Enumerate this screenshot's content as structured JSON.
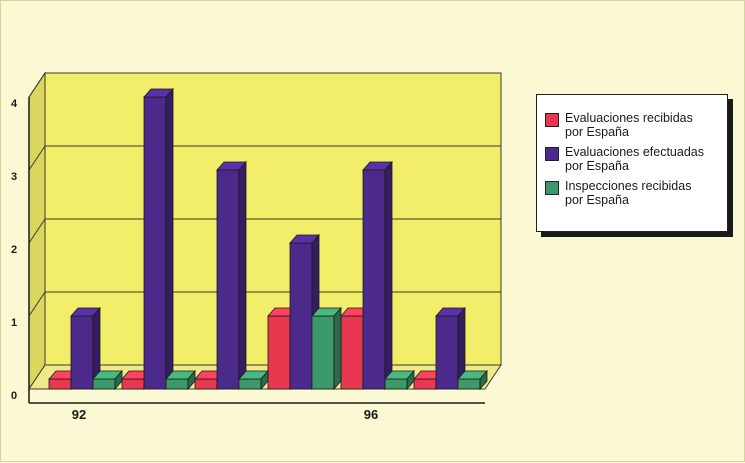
{
  "chart_data": {
    "type": "bar",
    "style": "3d-clustered",
    "categories": [
      "92",
      "",
      "",
      "",
      "96",
      ""
    ],
    "series": [
      {
        "name": "Evaluaciones recibidas por España",
        "legend_lines": [
          "Evaluaciones recibidas",
          "por España"
        ],
        "color": "#e8384f",
        "values": [
          0,
          0,
          0,
          1,
          1,
          0
        ]
      },
      {
        "name": "Evaluaciones efectuadas por España",
        "legend_lines": [
          "Evaluaciones efectuadas",
          "por España"
        ],
        "color": "#4b2a8c",
        "values": [
          1,
          4,
          3,
          2,
          3,
          1
        ]
      },
      {
        "name": "Inspecciones recibidas por España",
        "legend_lines": [
          "Inspecciones recibidas",
          "por España"
        ],
        "color": "#3c9a6a",
        "values": [
          0,
          0,
          0,
          1,
          0,
          0
        ]
      }
    ],
    "yticks": [
      "0",
      "1",
      "2",
      "3",
      "4"
    ],
    "ylim": [
      0,
      4
    ],
    "grid": true,
    "legend_position": "right",
    "colors": {
      "wall": "#f2ee6a",
      "floor": "#efe98a",
      "background": "#fbf8d4"
    }
  }
}
